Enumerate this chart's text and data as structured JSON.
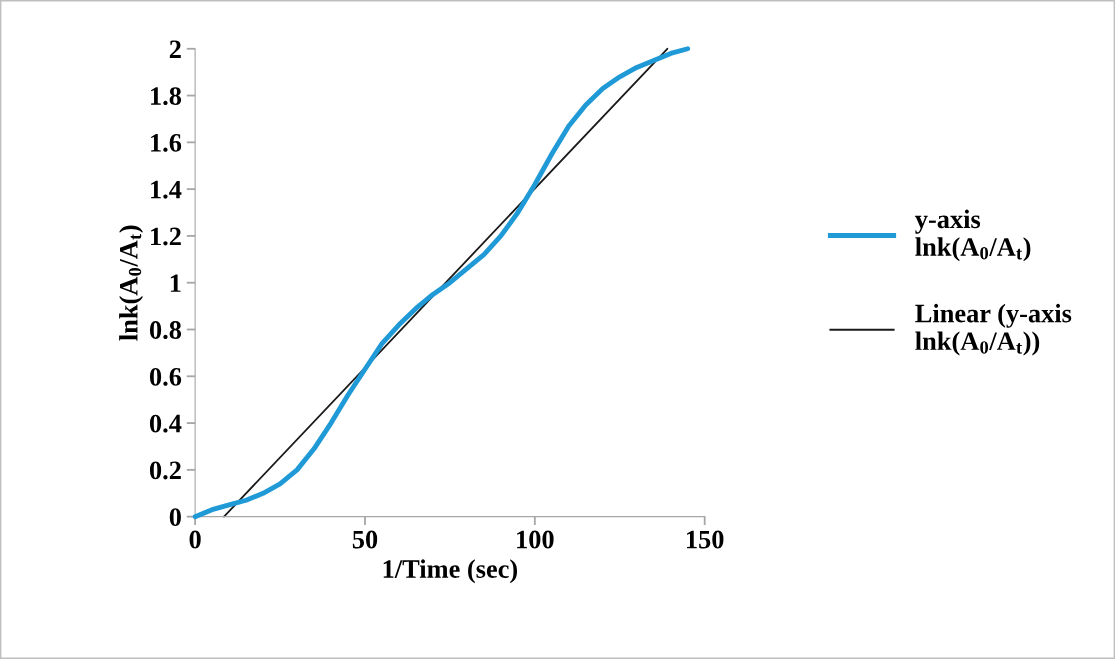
{
  "chart_data": {
    "type": "line",
    "xlabel": "1/Time (sec)",
    "ylabel": "lnk(A$_{0}$/A$_{t}$)",
    "xlim": [
      0,
      150
    ],
    "xticks": [
      0,
      50,
      100,
      150
    ],
    "ylim": [
      0,
      2
    ],
    "yticks": [
      0,
      0.2,
      0.4,
      0.6,
      0.8,
      1,
      1.2,
      1.4,
      1.6,
      1.8,
      2
    ],
    "grid": false,
    "legend": "right",
    "marker": "none",
    "series": [
      {
        "name": "y-axis lnk(A$_{0}$/A$_{t}$)",
        "color": "#1f9ad6",
        "x": [
          0,
          5,
          10,
          15,
          20,
          25,
          30,
          35,
          40,
          45,
          50,
          55,
          60,
          65,
          70,
          75,
          80,
          85,
          90,
          95,
          100,
          105,
          110,
          115,
          120,
          125,
          130,
          135,
          140,
          145
        ],
        "values": [
          0,
          0.03,
          0.05,
          0.07,
          0.1,
          0.14,
          0.2,
          0.29,
          0.4,
          0.52,
          0.63,
          0.74,
          0.82,
          0.89,
          0.95,
          1.0,
          1.06,
          1.12,
          1.2,
          1.3,
          1.42,
          1.55,
          1.67,
          1.76,
          1.83,
          1.88,
          1.92,
          1.95,
          1.98,
          2.0
        ]
      },
      {
        "name": "Linear (y-axis lnk(A$_{0}$/A$_{t}$))",
        "type": "line",
        "color": "#1a1a1a",
        "x": [
          8.5,
          139
        ],
        "values": [
          0,
          2
        ]
      }
    ]
  }
}
